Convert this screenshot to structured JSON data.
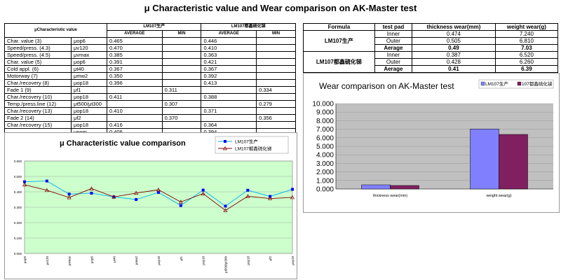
{
  "title": "μ Characteristic value and Wear comparison on AK-Master test",
  "table1": {
    "header_label": "μCharacteristic value",
    "group_a": "LM107生产",
    "group_b": "LM107都鑫硫化锑",
    "col_average": "AVERAGE",
    "col_min": "MIN",
    "rows": [
      {
        "name": "Char. value (3)",
        "param": "μop6",
        "a_avg": "0.465",
        "a_min": "",
        "b_avg": "0.446",
        "b_min": ""
      },
      {
        "name": "Speed/press. (4.3)",
        "param": "μv120",
        "a_avg": "0.470",
        "a_min": "",
        "b_avg": "0.410",
        "b_min": ""
      },
      {
        "name": "Speed/press. (4.5)",
        "param": "μvmax",
        "a_avg": "0.385",
        "a_min": "",
        "b_avg": "0.363",
        "b_min": ""
      },
      {
        "name": "Char. value (5)",
        "param": "μop6",
        "a_avg": "0.391",
        "a_min": "",
        "b_avg": "0.421",
        "b_min": ""
      },
      {
        "name": "Cold appl. (6)",
        "param": "μt40",
        "a_avg": "0.367",
        "a_min": "",
        "b_avg": "0.367",
        "b_min": ""
      },
      {
        "name": "Motorway (7)",
        "param": "μmw2",
        "a_avg": "0.350",
        "a_min": "",
        "b_avg": "0.392",
        "b_min": ""
      },
      {
        "name": "Char./recovery (8)",
        "param": "μop18",
        "a_avg": "0.396",
        "a_min": "",
        "b_avg": "0.413",
        "b_min": ""
      },
      {
        "name": "Fade 1 (9)",
        "param": "μf1",
        "a_avg": "",
        "a_min": "0.311",
        "b_avg": "",
        "b_min": "0.334"
      },
      {
        "name": "Char./recovery (10)",
        "param": "μop18",
        "a_avg": "0.411",
        "a_min": "",
        "b_avg": "0.388",
        "b_min": ""
      },
      {
        "name": "Temp./press.line (12)",
        "param": "μt500/μt300",
        "a_avg": "",
        "a_min": "0.307",
        "b_avg": "",
        "b_min": "0.279"
      },
      {
        "name": "Char./recovery (13)",
        "param": "μop18",
        "a_avg": "0.410",
        "a_min": "",
        "b_avg": "0.371",
        "b_min": ""
      },
      {
        "name": "Fade 2 (14)",
        "param": "μf2",
        "a_avg": "",
        "a_min": "0.370",
        "b_avg": "",
        "b_min": "0.356"
      },
      {
        "name": "Char./recovery (15)",
        "param": "μop18",
        "a_avg": "0.416",
        "a_min": "",
        "b_avg": "0.364",
        "b_min": ""
      },
      {
        "name": "",
        "param": "μnom",
        "a_avg": "0.406",
        "a_min": "",
        "b_avg": "0.394",
        "b_min": ""
      },
      {
        "name": "",
        "param": "μmin",
        "a_avg": "",
        "a_min": "0.307",
        "b_avg": "",
        "b_min": "0.279"
      }
    ]
  },
  "table2": {
    "headers": [
      "Formula",
      "test pad",
      "thickness wear(mm)",
      "weight wear(g)"
    ],
    "groups": [
      {
        "formula": "LM107生产",
        "rows": [
          {
            "pad": "Inner",
            "thick": "0.474",
            "weight": "7.240",
            "bold": false
          },
          {
            "pad": "Outer",
            "thick": "0.505",
            "weight": "6.810",
            "bold": false
          },
          {
            "pad": "Aerage",
            "thick": "0.49",
            "weight": "7.03",
            "bold": true
          }
        ]
      },
      {
        "formula": "LM107都鑫硫化锑",
        "rows": [
          {
            "pad": "Inner",
            "thick": "0.387",
            "weight": "6.520",
            "bold": false
          },
          {
            "pad": "Outer",
            "thick": "0.428",
            "weight": "6.260",
            "bold": false
          },
          {
            "pad": "Aerage",
            "thick": "0.41",
            "weight": "6.39",
            "bold": true
          }
        ]
      }
    ]
  },
  "chart_data": [
    {
      "type": "line",
      "title": "μ Characteristic value comparison",
      "y_ticks": [
        "0.600",
        "0.500",
        "0.400",
        "0.300",
        "0.200",
        "0.100",
        "0.000"
      ],
      "categories": [
        "μop6",
        "μv120",
        "μvmax",
        "μop6",
        "μt40",
        "μmw2",
        "μop18",
        "μf1",
        "μop18",
        "μt500/μt300",
        "μop18",
        "μf2",
        "μop18"
      ],
      "ylim": [
        0,
        0.6
      ],
      "grid": true,
      "series": [
        {
          "name": "LM107生产",
          "color": "#00b0f0",
          "marker": "square",
          "values": [
            0.465,
            0.47,
            0.385,
            0.391,
            0.367,
            0.35,
            0.396,
            0.311,
            0.411,
            0.307,
            0.41,
            0.37,
            0.416
          ]
        },
        {
          "name": "LM107都鑫硫化锑",
          "color": "#800000",
          "marker": "triangle",
          "values": [
            0.446,
            0.41,
            0.363,
            0.421,
            0.367,
            0.392,
            0.413,
            0.334,
            0.388,
            0.279,
            0.371,
            0.356,
            0.364
          ]
        }
      ],
      "legend": "top-right",
      "plot_bg": "#ccffcc"
    },
    {
      "type": "bar",
      "title": "Wear comparison on AK-Master test",
      "categories": [
        "thickness wear(mm)",
        "weight wear(g)"
      ],
      "y_ticks": [
        "10.000",
        "9.000",
        "8.000",
        "7.000",
        "6.000",
        "5.000",
        "4.000",
        "3.000",
        "2.000",
        "1.000",
        "0.000"
      ],
      "ylim": [
        0,
        10
      ],
      "grid": true,
      "series": [
        {
          "name": "LM107生产",
          "color": "#8080ff",
          "values": [
            0.49,
            7.03
          ]
        },
        {
          "name": "107都鑫硫化锑",
          "color": "#802060",
          "values": [
            0.41,
            6.39
          ]
        }
      ],
      "legend": "top-right",
      "plot_bg": "#c0c0c0"
    }
  ]
}
